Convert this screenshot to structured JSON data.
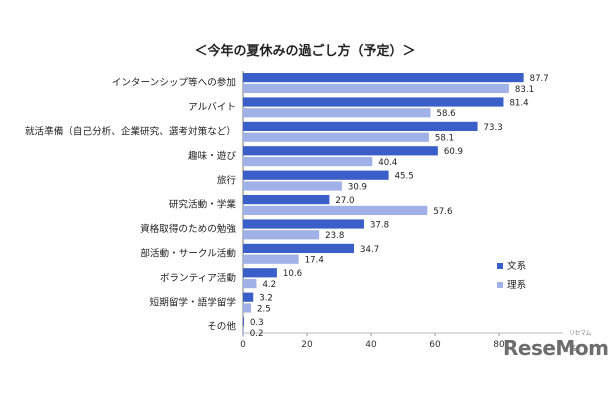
{
  "chart_data": {
    "type": "bar",
    "orientation": "horizontal",
    "title": "＜今年の夏休みの過ごし方（予定）＞",
    "unit": "(%)",
    "categories": [
      "インターンシップ等への参加",
      "アルバイト",
      "就活準備（自己分析、企業研究、選考対策など）",
      "趣味・遊び",
      "旅行",
      "研究活動・学業",
      "資格取得のための勉強",
      "部活動・サークル活動",
      "ボランティア活動",
      "短期留学・語学留学",
      "その他"
    ],
    "series": [
      {
        "name": "文系",
        "values": [
          87.7,
          81.4,
          73.3,
          60.9,
          45.5,
          27.0,
          37.8,
          34.7,
          10.6,
          3.2,
          0.3
        ]
      },
      {
        "name": "理系",
        "values": [
          83.1,
          58.6,
          58.1,
          40.4,
          30.9,
          57.6,
          23.8,
          17.4,
          4.2,
          2.5,
          0.2
        ]
      }
    ],
    "value_labels": [
      [
        "87.7",
        "81.4",
        "73.3",
        "60.9",
        "45.5",
        "27.0",
        "37.8",
        "34.7",
        "10.6",
        "3.2",
        "0.3"
      ],
      [
        "83.1",
        "58.6",
        "58.1",
        "40.4",
        "30.9",
        "57.6",
        "23.8",
        "17.4",
        "4.2",
        "2.5",
        "0.2"
      ]
    ],
    "xlim": [
      0,
      100
    ],
    "xticks": [
      0,
      20,
      40,
      60,
      80
    ],
    "xtick_labels": [
      "0",
      "20",
      "40",
      "60",
      "80"
    ],
    "grid": false,
    "legend_position": "right",
    "colors": [
      "#3a5fc8",
      "#9fb1e6"
    ]
  },
  "watermark": {
    "text": "ReseMom",
    "small": "リセマム"
  }
}
